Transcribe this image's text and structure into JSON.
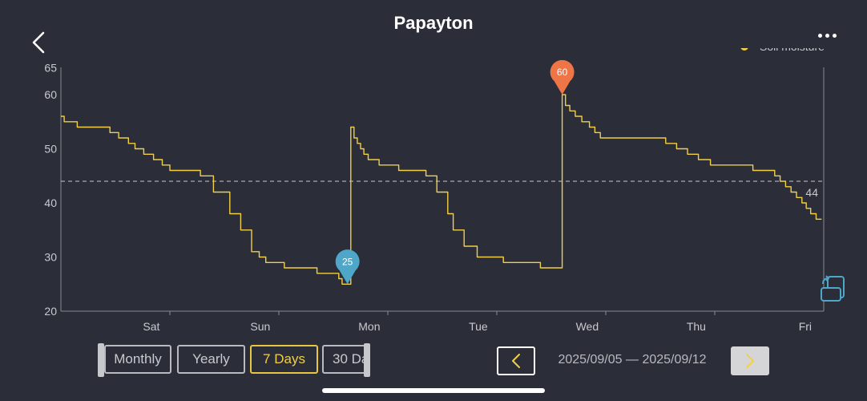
{
  "header": {
    "title": "Papayton"
  },
  "icons": {
    "back": "chevron-left-icon",
    "more": "more-dots-icon",
    "rotate": "rotate-screen-icon",
    "prev": "chevron-left-icon",
    "next": "chevron-right-icon"
  },
  "colors": {
    "background": "#2b2d38",
    "series": "#f2cf45",
    "min_pin": "#4ea6c9",
    "max_pin": "#ef7446",
    "axis": "#8a8b92",
    "reference_line": "#c7c8cc",
    "active": "#e8c640"
  },
  "range_buttons": [
    {
      "label": "Monthly",
      "active": false
    },
    {
      "label": "Yearly",
      "active": false
    },
    {
      "label": "7 Days",
      "active": true
    },
    {
      "label": "30 Da",
      "active": false
    }
  ],
  "date_nav": {
    "range_label": "2025/09/05 — 2025/09/12"
  },
  "chart_data": {
    "type": "line",
    "title": "",
    "xlabel": "",
    "ylabel": "",
    "ylim": [
      20,
      65
    ],
    "yticks": [
      20,
      30,
      40,
      50,
      60,
      65
    ],
    "xlim": [
      0,
      7
    ],
    "x_tick_labels": [
      {
        "label": "Sat",
        "x": 0.83
      },
      {
        "label": "Sun",
        "x": 1.83
      },
      {
        "label": "Mon",
        "x": 2.83
      },
      {
        "label": "Tue",
        "x": 3.83
      },
      {
        "label": "Wed",
        "x": 4.83
      },
      {
        "label": "Thu",
        "x": 5.83
      },
      {
        "label": "Fri",
        "x": 6.83
      }
    ],
    "grid": false,
    "legend": {
      "position": "top-right"
    },
    "reference_line": {
      "value": 44,
      "label": "44"
    },
    "annotations": [
      {
        "label": "25",
        "kind": "min",
        "x": 2.63,
        "y": 25
      },
      {
        "label": "60",
        "kind": "max",
        "x": 4.6,
        "y": 60
      }
    ],
    "series": [
      {
        "name": "Soil moisture",
        "x": [
          0,
          0.03,
          0.15,
          0.26,
          0.45,
          0.53,
          0.62,
          0.68,
          0.76,
          0.85,
          0.93,
          1.0,
          1.1,
          1.28,
          1.4,
          1.55,
          1.65,
          1.75,
          1.82,
          1.88,
          1.95,
          2.05,
          2.15,
          2.25,
          2.35,
          2.45,
          2.55,
          2.58,
          2.63,
          2.66,
          2.69,
          2.72,
          2.75,
          2.78,
          2.82,
          2.87,
          2.92,
          2.97,
          3.02,
          3.1,
          3.25,
          3.35,
          3.45,
          3.55,
          3.6,
          3.7,
          3.82,
          3.94,
          4.06,
          4.15,
          4.3,
          4.4,
          4.48,
          4.55,
          4.6,
          4.63,
          4.67,
          4.72,
          4.78,
          4.85,
          4.9,
          4.95,
          5.1,
          5.3,
          5.55,
          5.65,
          5.75,
          5.85,
          5.96,
          6.1,
          6.25,
          6.35,
          6.48,
          6.55,
          6.6,
          6.65,
          6.7,
          6.75,
          6.8,
          6.84,
          6.88,
          6.93,
          6.98
        ],
        "values": [
          56,
          55,
          54,
          54,
          53,
          52,
          51,
          50,
          49,
          48,
          47,
          46,
          46,
          45,
          42,
          38,
          35,
          31,
          30,
          29,
          29,
          28,
          28,
          28,
          27,
          27,
          26,
          25,
          25,
          54,
          52,
          51,
          50,
          49,
          48,
          48,
          47,
          47,
          47,
          46,
          46,
          45,
          42,
          38,
          35,
          32,
          30,
          30,
          29,
          29,
          29,
          28,
          28,
          28,
          60,
          58,
          57,
          56,
          55,
          54,
          53,
          52,
          52,
          52,
          51,
          50,
          49,
          48,
          47,
          47,
          47,
          46,
          46,
          45,
          44,
          43,
          42,
          41,
          40,
          39,
          38,
          37,
          37
        ]
      }
    ]
  }
}
